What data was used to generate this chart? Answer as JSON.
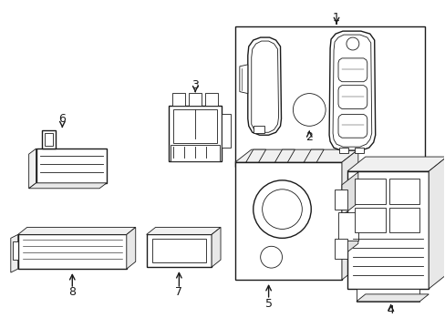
{
  "background_color": "#ffffff",
  "line_color": "#1a1a1a",
  "figsize": [
    4.89,
    3.6
  ],
  "dpi": 100,
  "lw": 1.0,
  "tlw": 0.6
}
